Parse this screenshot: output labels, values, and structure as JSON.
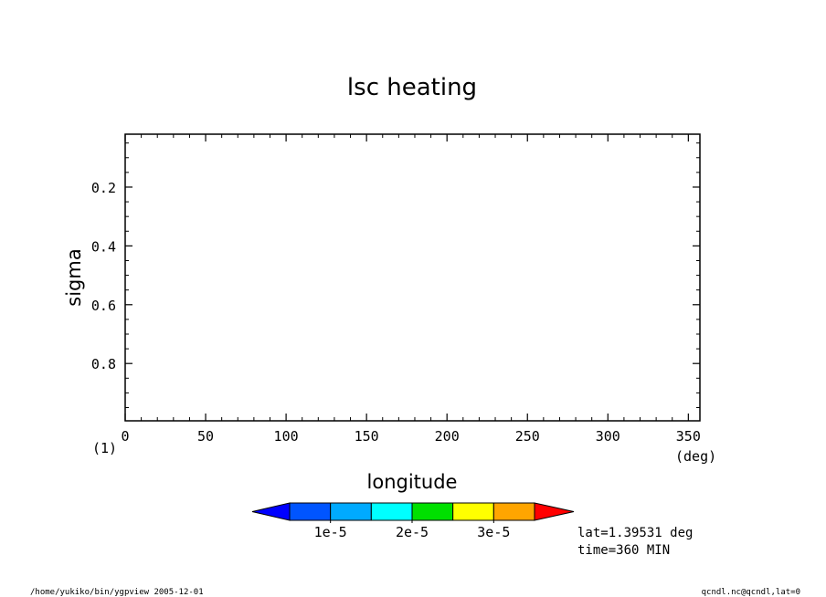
{
  "chart_data": {
    "type": "contour",
    "title": "lsc heating",
    "xlabel": "longitude",
    "xunit": "(deg)",
    "ylabel": "sigma",
    "corner_label": "(1)",
    "x_ticks": [
      0,
      50,
      100,
      150,
      200,
      250,
      300,
      350
    ],
    "y_ticks": [
      0.2,
      0.4,
      0.6,
      0.8
    ],
    "xlim": [
      0,
      357.1875
    ],
    "ylim": [
      0.02,
      0.995
    ],
    "y_inverted": true,
    "x_minor_step": 10,
    "y_minor_step": 0.05,
    "values": [],
    "colorbar": {
      "colors": [
        "#0000ff",
        "#0055ff",
        "#00aaff",
        "#00ffff",
        "#00e000",
        "#ffff00",
        "#ffa500",
        "#ff0000"
      ],
      "tick_labels": [
        "1e-5",
        "2e-5",
        "3e-5"
      ],
      "tick_values": [
        1e-05,
        2e-05,
        3e-05
      ],
      "levels": [
        0,
        5e-06,
        1e-05,
        1.5e-05,
        2e-05,
        2.5e-05,
        3e-05,
        3.5e-05
      ],
      "extend": "both"
    },
    "annotations": [
      "lat=1.39531 deg",
      "time=360 MIN"
    ]
  },
  "footer": {
    "left": "/home/yukiko/bin/ygpview  2005-12-01",
    "right": "qcndl.nc@qcndl,lat=0"
  }
}
